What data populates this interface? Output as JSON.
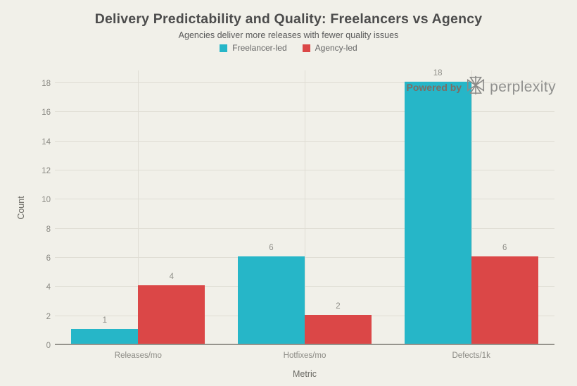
{
  "chart_data": {
    "type": "bar",
    "title": "Delivery Predictability and Quality: Freelancers vs Agency",
    "subtitle": "Agencies deliver more releases with fewer quality issues",
    "categories": [
      "Releases/mo",
      "Hotfixes/mo",
      "Defects/1k"
    ],
    "series": [
      {
        "name": "Freelancer-led",
        "color": "#26b6c8",
        "values": [
          1,
          6,
          18
        ]
      },
      {
        "name": "Agency-led",
        "color": "#db4747",
        "values": [
          4,
          2,
          6
        ]
      }
    ],
    "xlabel": "Metric",
    "ylabel": "Count",
    "ylim": [
      0,
      18
    ],
    "yticks": [
      0,
      2,
      4,
      6,
      8,
      10,
      12,
      14,
      16,
      18
    ],
    "grid": true,
    "bar_labels": true,
    "legend_position": "top",
    "theme": {
      "background": "#f1f0e9",
      "grid": "#dfddd4",
      "axis_line": "#96948d",
      "tick_label": "#8b8a84",
      "data_label": "#8f8e88",
      "title": "#4c4c4c",
      "subtitle": "#5a5a5a",
      "axis_title": "#6a6963",
      "legend_text": "#666666",
      "watermark_text": "#7b6e66",
      "watermark_brand": "#90908e",
      "watermark_logo": "#8a8a88"
    }
  },
  "watermark": {
    "prefix": "Powered by",
    "brand": "perplexity"
  }
}
